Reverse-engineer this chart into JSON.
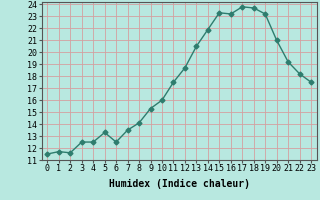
{
  "x": [
    0,
    1,
    2,
    3,
    4,
    5,
    6,
    7,
    8,
    9,
    10,
    11,
    12,
    13,
    14,
    15,
    16,
    17,
    18,
    19,
    20,
    21,
    22,
    23
  ],
  "y": [
    11.5,
    11.7,
    11.6,
    12.5,
    12.5,
    13.3,
    12.5,
    13.5,
    14.1,
    15.3,
    16.0,
    17.5,
    18.7,
    20.5,
    21.9,
    23.3,
    23.2,
    23.8,
    23.7,
    23.2,
    21.0,
    19.2,
    18.2,
    17.5
  ],
  "xlabel": "Humidex (Indice chaleur)",
  "xlim": [
    -0.5,
    23.5
  ],
  "ylim": [
    11,
    24.2
  ],
  "yticks": [
    11,
    12,
    13,
    14,
    15,
    16,
    17,
    18,
    19,
    20,
    21,
    22,
    23,
    24
  ],
  "xticks": [
    0,
    1,
    2,
    3,
    4,
    5,
    6,
    7,
    8,
    9,
    10,
    11,
    12,
    13,
    14,
    15,
    16,
    17,
    18,
    19,
    20,
    21,
    22,
    23
  ],
  "line_color": "#2e7d6e",
  "marker": "D",
  "marker_size": 2.5,
  "bg_color": "#b8e8e0",
  "grid_color": "#d4a0a0",
  "label_fontsize": 7,
  "tick_fontsize": 6,
  "linewidth": 1.0
}
